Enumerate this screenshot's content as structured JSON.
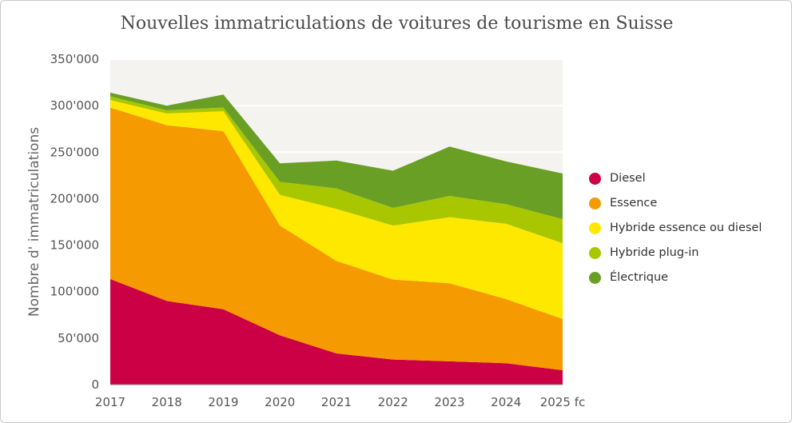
{
  "chart_data": {
    "type": "area",
    "stacked": true,
    "title": "Nouvelles immatriculations de voitures de tourisme en Suisse",
    "xlabel": "",
    "ylabel": "Nombre d' immatriculations",
    "categories": [
      "2017",
      "2018",
      "2019",
      "2020",
      "2021",
      "2022",
      "2023",
      "2024",
      "2025 fc"
    ],
    "ylim": [
      0,
      350000
    ],
    "yticks": [
      0,
      50000,
      100000,
      150000,
      200000,
      250000,
      300000,
      350000
    ],
    "ytick_labels": [
      "0",
      "50'000",
      "100'000",
      "150'000",
      "200'000",
      "250'000",
      "300'000",
      "350'000"
    ],
    "grid": true,
    "legend_position": "right",
    "series": [
      {
        "name": "Diesel",
        "color": "#cc0044",
        "values": [
          113500,
          90000,
          81000,
          53000,
          33500,
          27000,
          25000,
          23000,
          15500
        ]
      },
      {
        "name": "Essence",
        "color": "#f59a00",
        "values": [
          184500,
          189000,
          191600,
          118000,
          99500,
          86000,
          84000,
          69000,
          55000
        ]
      },
      {
        "name": "Hybride essence ou diesel",
        "color": "#ffe800",
        "values": [
          8000,
          12500,
          21400,
          33000,
          56000,
          58000,
          71000,
          81000,
          81500
        ]
      },
      {
        "name": "Hybride plug-in",
        "color": "#a9c700",
        "values": [
          4000,
          3500,
          4000,
          14000,
          22000,
          19000,
          23000,
          21000,
          26000
        ]
      },
      {
        "name": "Électrique",
        "color": "#6a9f26",
        "values": [
          4000,
          5000,
          14000,
          20000,
          30000,
          40000,
          53000,
          46000,
          49000
        ]
      }
    ],
    "plot_background": "#f5f3ef"
  }
}
